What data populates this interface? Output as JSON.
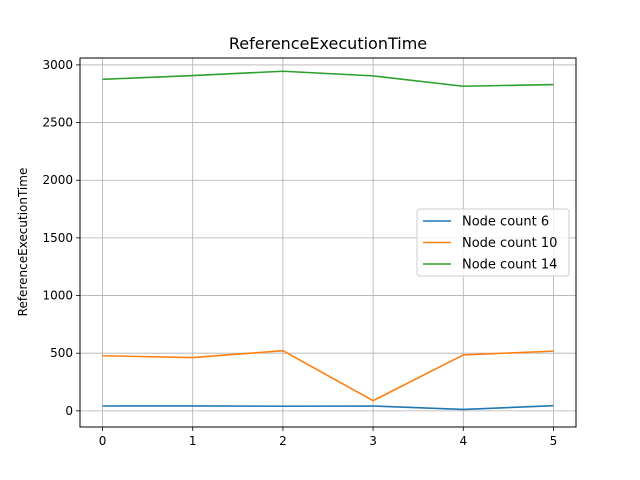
{
  "chart_data": {
    "type": "line",
    "title": "ReferenceExecutionTime",
    "xlabel": "",
    "ylabel": "ReferenceExecutionTime",
    "x": [
      0,
      1,
      2,
      3,
      4,
      5
    ],
    "xlim": [
      -0.25,
      5.25
    ],
    "ylim": [
      -140,
      3060
    ],
    "xticks": [
      "0",
      "1",
      "2",
      "3",
      "4",
      "5"
    ],
    "yticks": [
      "0",
      "500",
      "1000",
      "1500",
      "2000",
      "2500",
      "3000"
    ],
    "ytick_values": [
      0,
      500,
      1000,
      1500,
      2000,
      2500,
      3000
    ],
    "grid": true,
    "legend_position": "center-right",
    "series": [
      {
        "name": "Node count 6",
        "color": "#1f77b4",
        "values": [
          42,
          43,
          40,
          42,
          12,
          45
        ]
      },
      {
        "name": "Node count 10",
        "color": "#ff7f0e",
        "values": [
          478,
          462,
          522,
          88,
          485,
          518
        ]
      },
      {
        "name": "Node count 14",
        "color": "#2ca02c",
        "values": [
          2875,
          2908,
          2945,
          2905,
          2815,
          2830
        ]
      }
    ]
  }
}
